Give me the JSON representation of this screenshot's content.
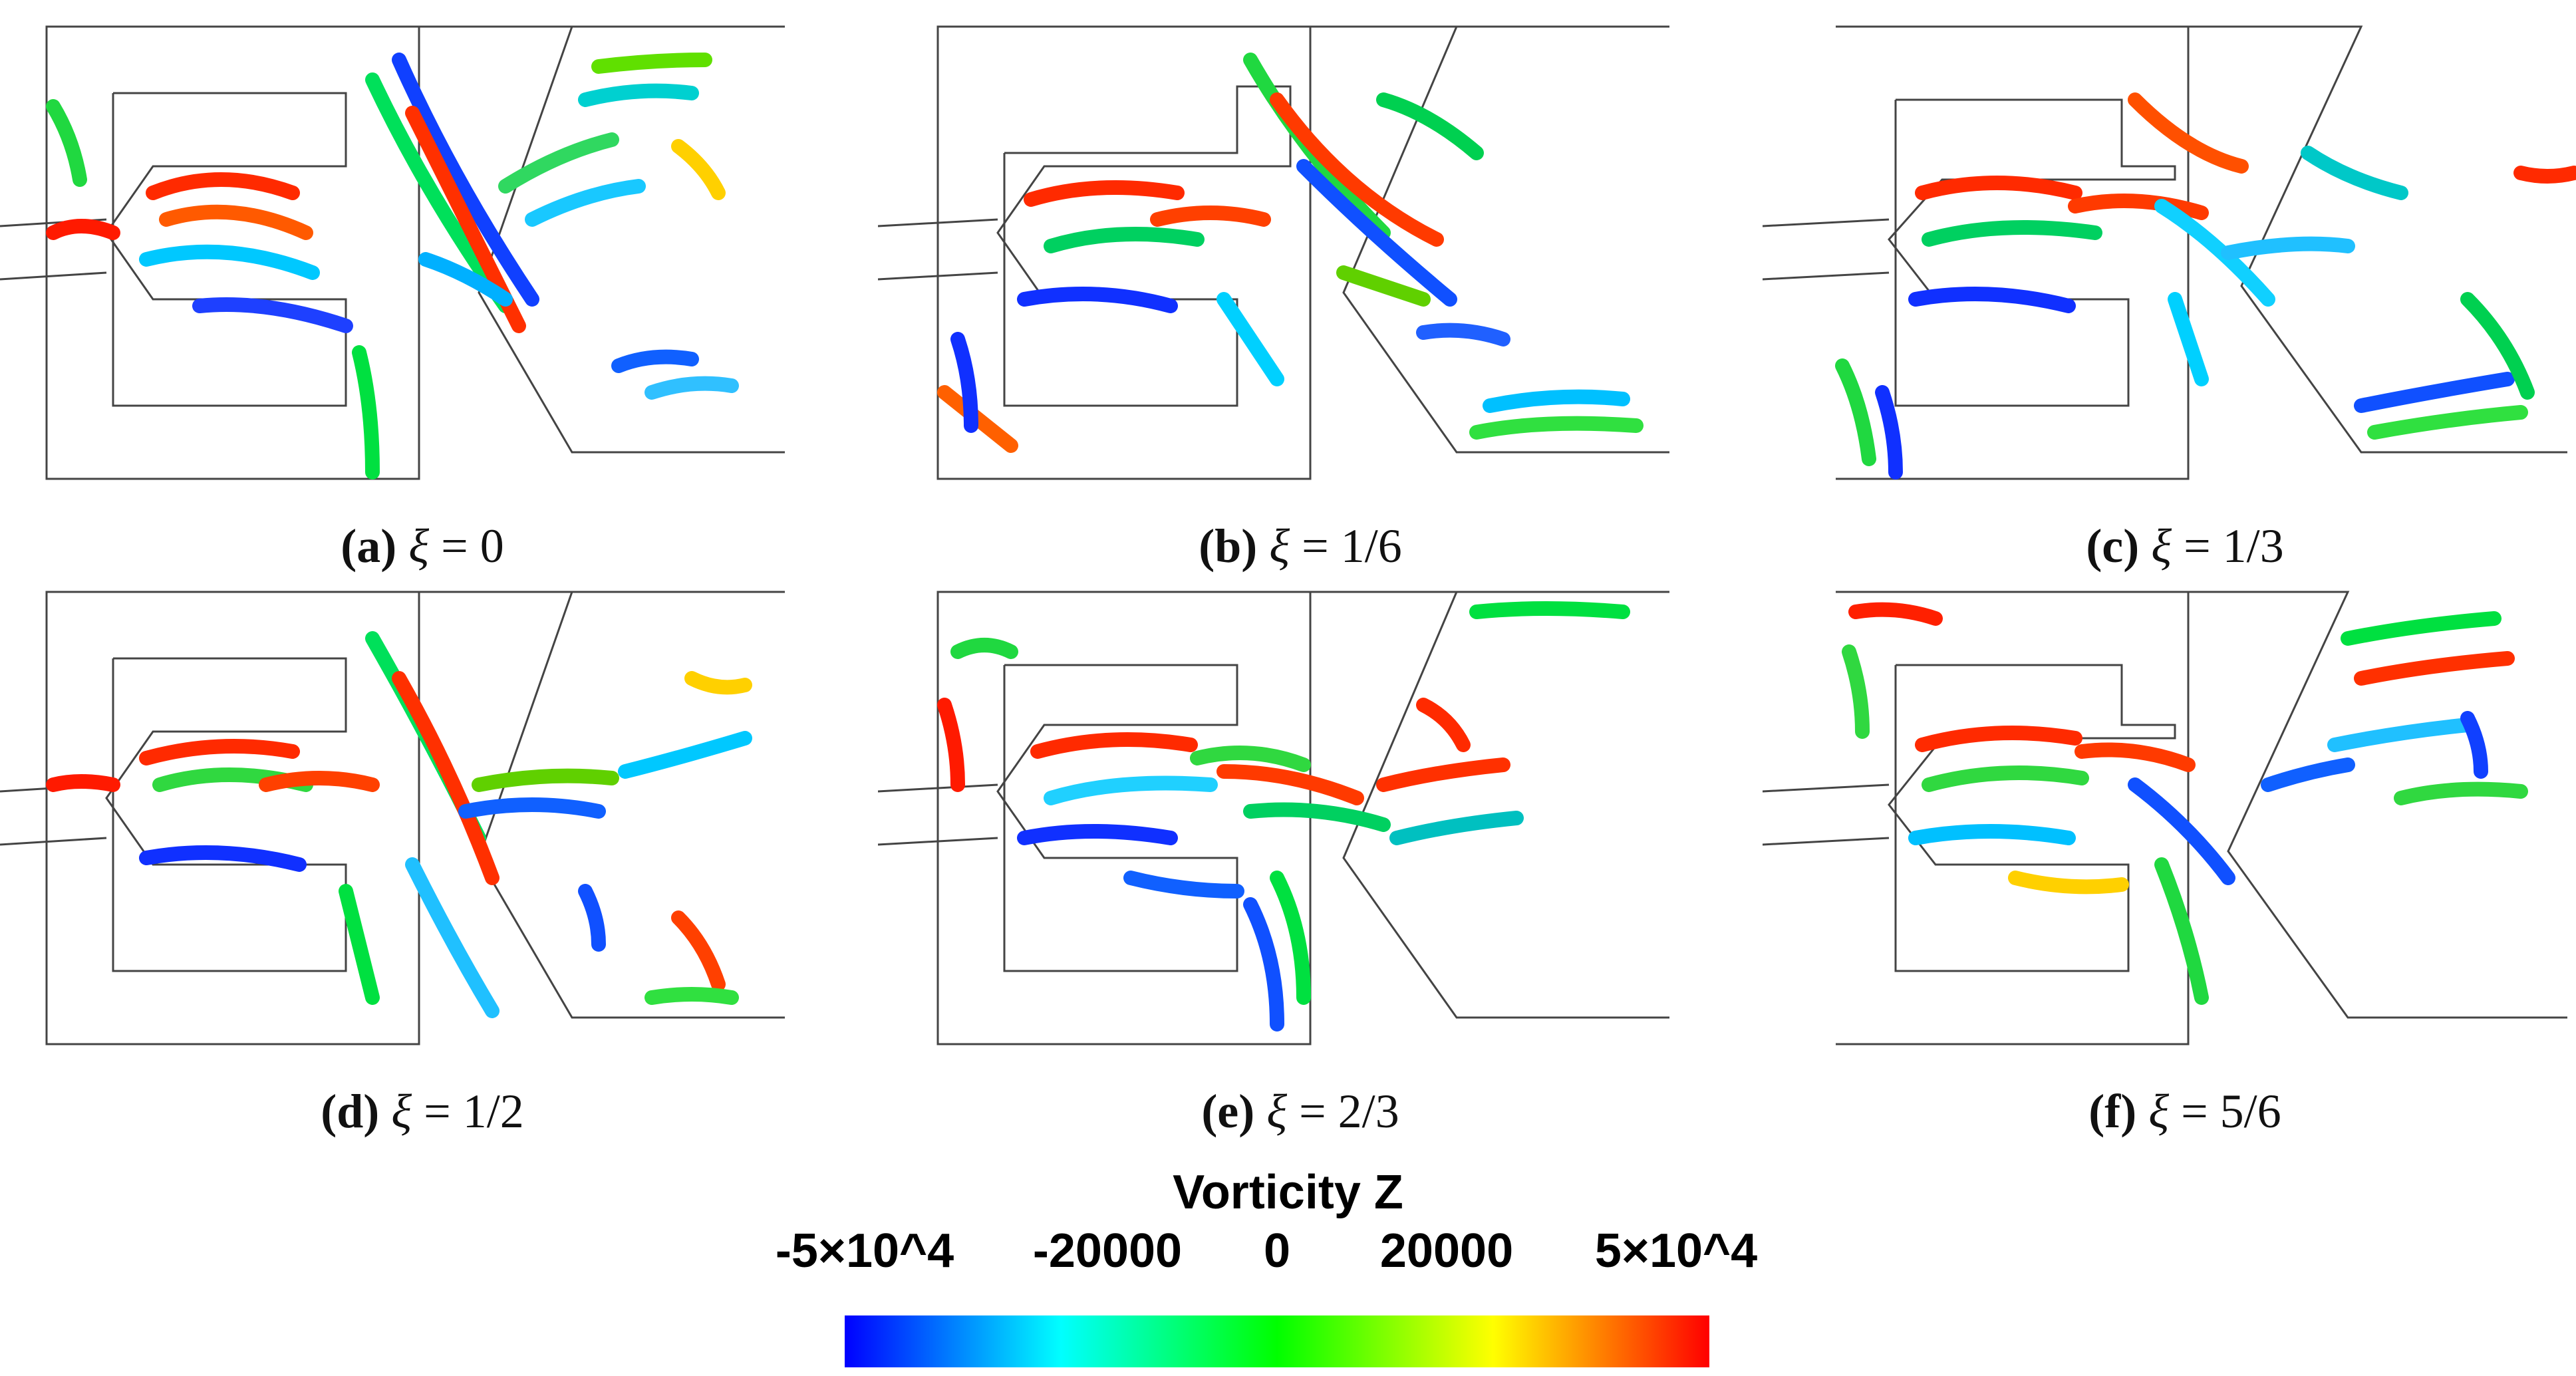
{
  "figure": {
    "panels": [
      {
        "letter": "(a)",
        "symbol": "ξ",
        "value": "= 0"
      },
      {
        "letter": "(b)",
        "symbol": "ξ",
        "value": "= 1/6"
      },
      {
        "letter": "(c)",
        "symbol": "ξ",
        "value": "= 1/3"
      },
      {
        "letter": "(d)",
        "symbol": "ξ",
        "value": "= 1/2"
      },
      {
        "letter": "(e)",
        "symbol": "ξ",
        "value": "= 2/3"
      },
      {
        "letter": "(f)",
        "symbol": "ξ",
        "value": "= 5/6"
      }
    ],
    "colorbar": {
      "title": "Vorticity Z",
      "ticks": [
        "-5×10^4",
        "-20000",
        "0",
        "20000",
        "5×10^4"
      ],
      "colormap": [
        "#0000ff",
        "#00ffff",
        "#00ff00",
        "#ffff00",
        "#ff0000"
      ]
    }
  }
}
